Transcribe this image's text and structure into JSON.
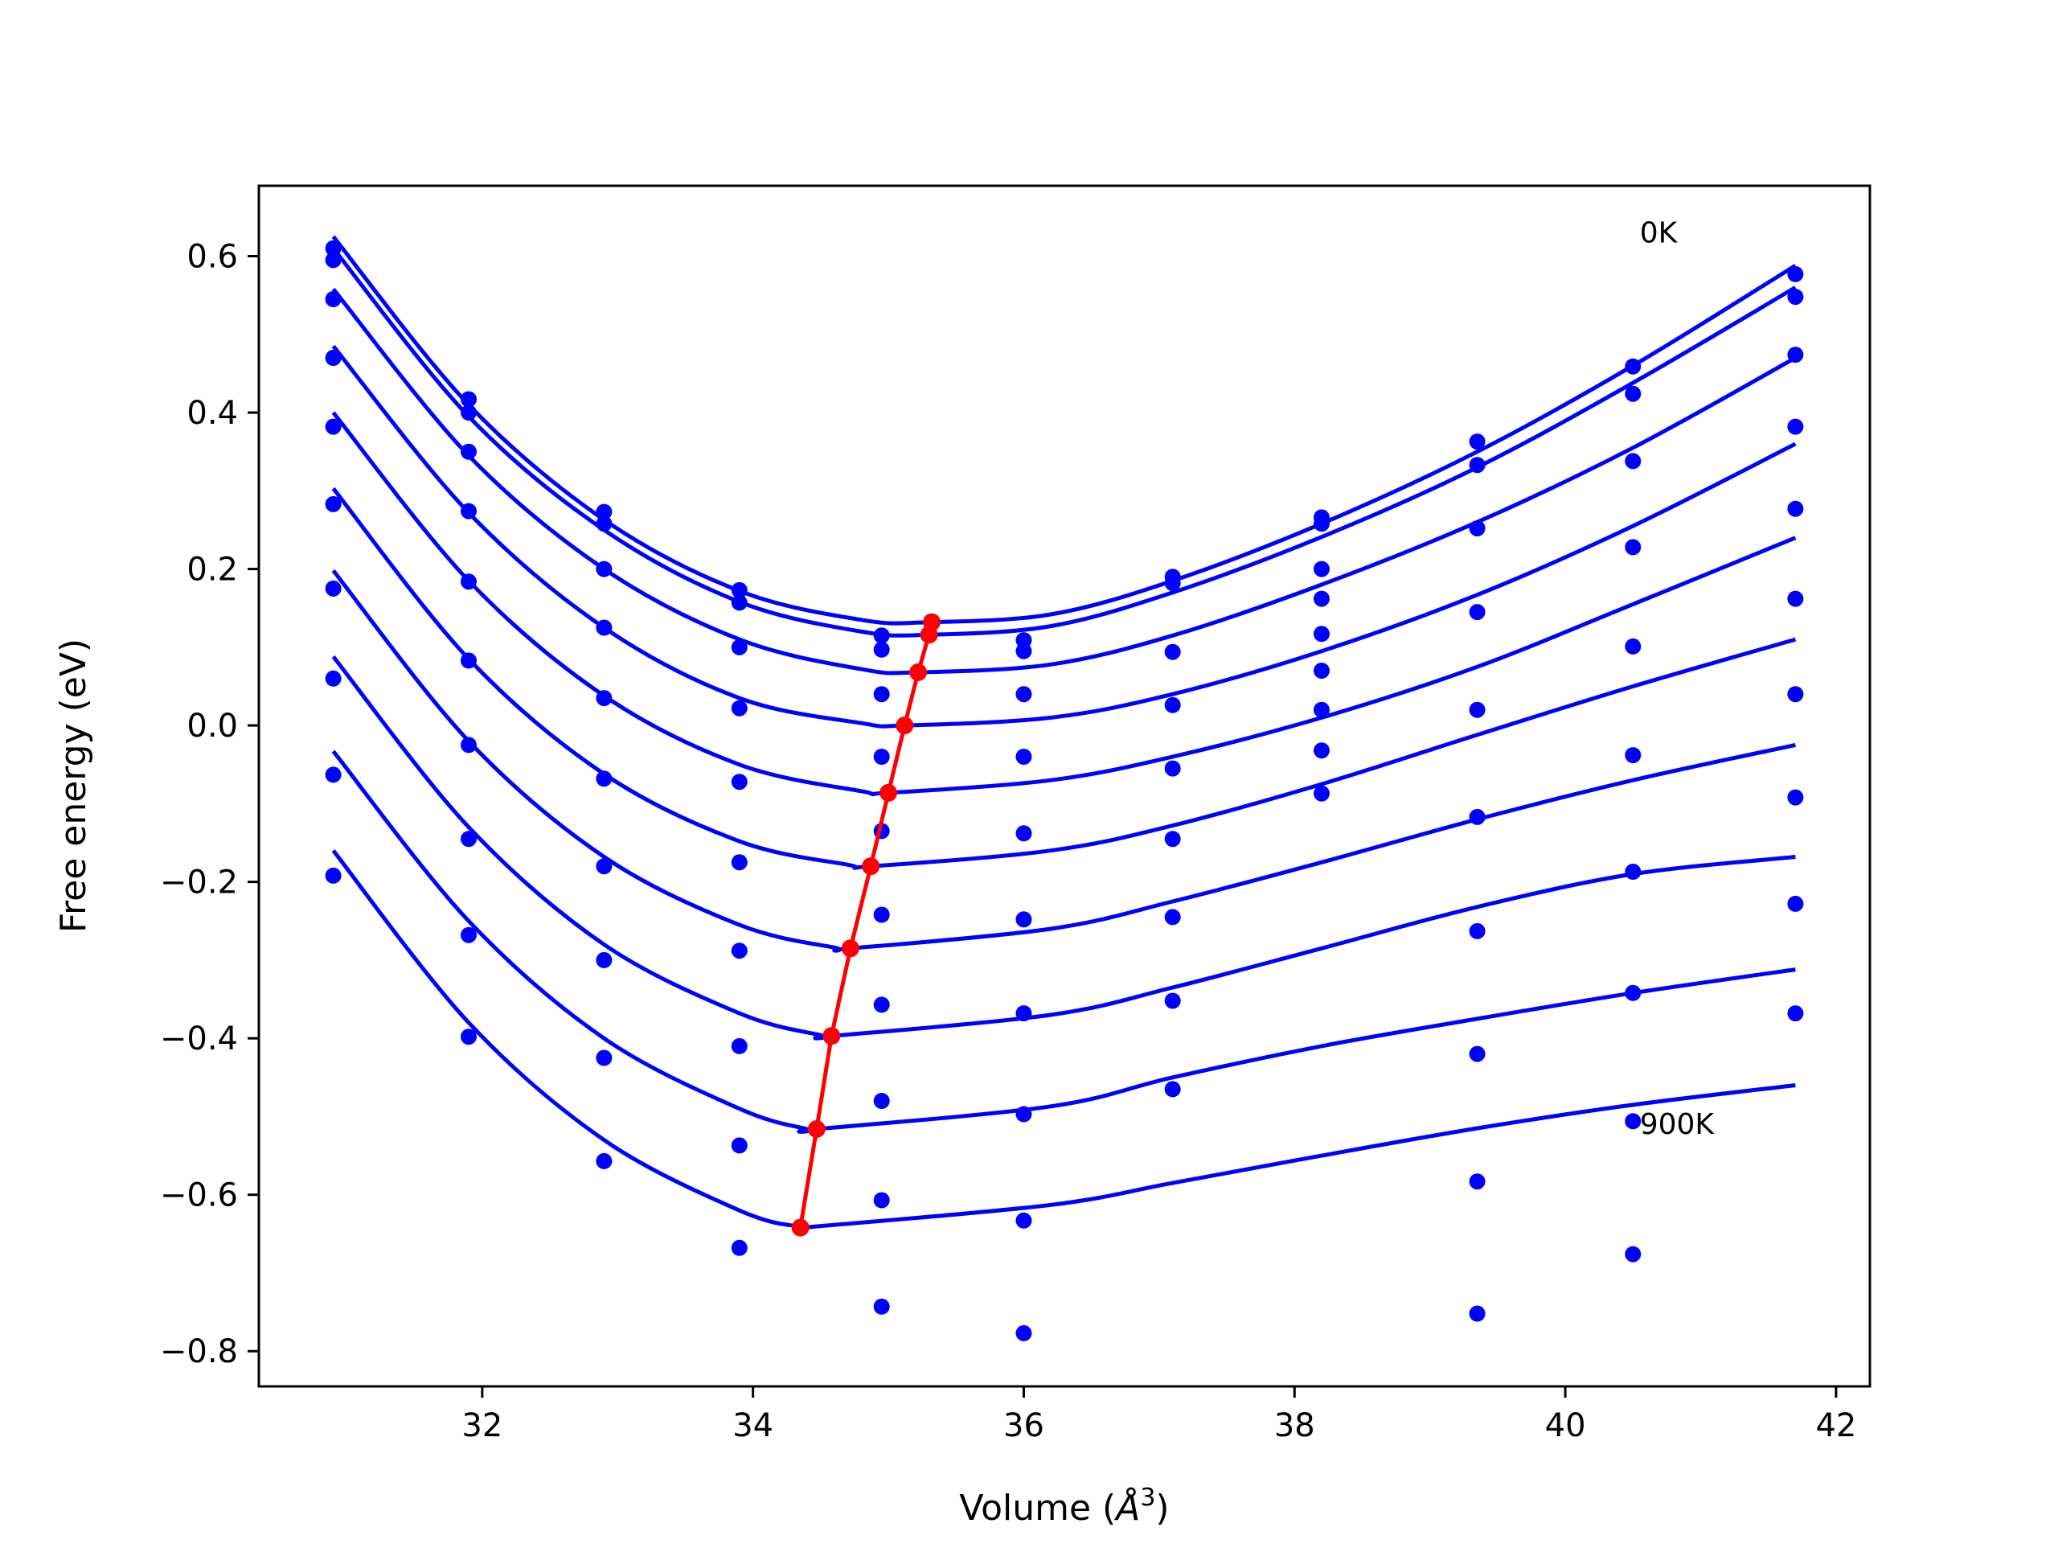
{
  "chart_data": {
    "type": "line",
    "xlabel_main": "Volume (",
    "xlabel_sym": "Å",
    "xlabel_exp": "3",
    "xlabel_close": ")",
    "ylabel": "Free energy (eV)",
    "xlim": [
      30.35,
      42.25
    ],
    "ylim": [
      -0.845,
      0.69
    ],
    "x_ticks": [
      32,
      34,
      36,
      38,
      40,
      42
    ],
    "x_tick_labels": [
      "32",
      "34",
      "36",
      "38",
      "40",
      "42"
    ],
    "y_ticks": [
      0.6,
      0.4,
      0.2,
      0.0,
      -0.2,
      -0.4,
      -0.6,
      -0.8
    ],
    "y_tick_labels": [
      "0.6",
      "0.4",
      "0.2",
      "0.0",
      "−0.2",
      "−0.4",
      "−0.6",
      "−0.8"
    ],
    "annotations": [
      {
        "text": "0K",
        "x": 40.55,
        "y": 0.63
      },
      {
        "text": "900K",
        "x": 40.55,
        "y": -0.51
      }
    ],
    "volumes": [
      30.9,
      31.9,
      32.9,
      33.9,
      34.95,
      36.0,
      37.1,
      38.2,
      39.35,
      40.5,
      41.7
    ],
    "point_color": "#0000ff",
    "curve_color": "#0000ff",
    "min_line_color": "#ff0000",
    "series": [
      {
        "points": [
          0.61,
          0.417,
          0.273,
          0.173,
          0.115,
          0.109,
          0.19,
          0.266,
          0.363,
          0.459,
          0.577
        ],
        "fit": [
          [
            30.9,
            0.625
          ],
          [
            31.9,
            0.41
          ],
          [
            32.9,
            0.263
          ],
          [
            33.9,
            0.172
          ],
          [
            34.8,
            0.135
          ],
          [
            35.3,
            0.132
          ],
          [
            36.2,
            0.142
          ],
          [
            37.1,
            0.185
          ],
          [
            38.2,
            0.258
          ],
          [
            39.35,
            0.35
          ],
          [
            40.5,
            0.46
          ],
          [
            41.7,
            0.588
          ]
        ]
      },
      {
        "points": [
          0.595,
          0.4,
          0.258,
          0.157,
          0.097,
          0.095,
          0.182,
          0.258,
          0.333,
          0.424,
          0.548
        ],
        "fit": [
          [
            30.9,
            0.61
          ],
          [
            31.9,
            0.395
          ],
          [
            32.9,
            0.25
          ],
          [
            33.9,
            0.158
          ],
          [
            34.8,
            0.12
          ],
          [
            35.3,
            0.116
          ],
          [
            36.2,
            0.127
          ],
          [
            37.1,
            0.17
          ],
          [
            38.2,
            0.241
          ],
          [
            39.35,
            0.33
          ],
          [
            40.5,
            0.438
          ],
          [
            41.7,
            0.56
          ]
        ]
      },
      {
        "points": [
          0.545,
          0.35,
          0.2,
          0.1,
          0.04,
          0.04,
          0.094,
          0.2,
          0.252,
          0.338,
          0.474
        ],
        "fit": [
          [
            30.9,
            0.558
          ],
          [
            31.9,
            0.345
          ],
          [
            32.9,
            0.2
          ],
          [
            33.9,
            0.11
          ],
          [
            34.8,
            0.072
          ],
          [
            35.22,
            0.068
          ],
          [
            36.2,
            0.078
          ],
          [
            37.1,
            0.115
          ],
          [
            38.2,
            0.18
          ],
          [
            39.35,
            0.26
          ],
          [
            40.5,
            0.355
          ],
          [
            41.7,
            0.47
          ]
        ]
      },
      {
        "points": [
          0.47,
          0.274,
          0.125,
          0.022,
          -0.04,
          -0.04,
          0.026,
          0.162,
          0.145,
          0.228,
          0.382
        ],
        "fit": [
          [
            30.9,
            0.485
          ],
          [
            31.9,
            0.272
          ],
          [
            32.9,
            0.125
          ],
          [
            33.9,
            0.035
          ],
          [
            34.8,
            0.003
          ],
          [
            35.12,
            0.0
          ],
          [
            36.2,
            0.01
          ],
          [
            37.1,
            0.04
          ],
          [
            38.2,
            0.095
          ],
          [
            39.35,
            0.167
          ],
          [
            40.5,
            0.255
          ],
          [
            41.7,
            0.36
          ]
        ]
      },
      {
        "points": [
          0.382,
          0.184,
          0.035,
          -0.072,
          -0.135,
          -0.138,
          -0.055,
          0.117,
          0.02,
          0.101,
          0.277
        ],
        "fit": [
          [
            30.9,
            0.4
          ],
          [
            31.9,
            0.185
          ],
          [
            32.9,
            0.038
          ],
          [
            33.9,
            -0.05
          ],
          [
            34.8,
            -0.084
          ],
          [
            35.0,
            -0.086
          ],
          [
            36.2,
            -0.07
          ],
          [
            37.1,
            -0.04
          ],
          [
            38.2,
            0.01
          ],
          [
            39.35,
            0.075
          ],
          [
            40.5,
            0.155
          ],
          [
            41.7,
            0.24
          ]
        ]
      },
      {
        "points": [
          0.283,
          0.083,
          -0.068,
          -0.175,
          -0.242,
          -0.248,
          -0.145,
          0.07,
          -0.117,
          -0.038,
          0.162
        ],
        "fit": [
          [
            30.9,
            0.303
          ],
          [
            31.9,
            0.085
          ],
          [
            32.9,
            -0.062
          ],
          [
            33.9,
            -0.148
          ],
          [
            34.7,
            -0.178
          ],
          [
            34.87,
            -0.18
          ],
          [
            36.2,
            -0.16
          ],
          [
            37.1,
            -0.128
          ],
          [
            38.2,
            -0.075
          ],
          [
            39.35,
            -0.012
          ],
          [
            40.5,
            0.05
          ],
          [
            41.7,
            0.11
          ]
        ]
      },
      {
        "points": [
          0.175,
          -0.025,
          -0.18,
          -0.288,
          -0.357,
          -0.368,
          -0.245,
          0.02,
          -0.263,
          -0.187,
          0.04
        ],
        "fit": [
          [
            30.9,
            0.198
          ],
          [
            31.9,
            -0.02
          ],
          [
            32.9,
            -0.168
          ],
          [
            33.9,
            -0.255
          ],
          [
            34.6,
            -0.284
          ],
          [
            34.72,
            -0.285
          ],
          [
            36.2,
            -0.26
          ],
          [
            37.1,
            -0.225
          ],
          [
            38.2,
            -0.175
          ],
          [
            39.35,
            -0.12
          ],
          [
            40.5,
            -0.07
          ],
          [
            41.7,
            -0.025
          ]
        ]
      },
      {
        "points": [
          0.06,
          -0.145,
          -0.3,
          -0.41,
          -0.48,
          -0.497,
          -0.352,
          -0.032,
          -0.42,
          -0.342,
          -0.092
        ],
        "fit": [
          [
            30.9,
            0.088
          ],
          [
            31.9,
            -0.13
          ],
          [
            32.9,
            -0.28
          ],
          [
            33.9,
            -0.368
          ],
          [
            34.5,
            -0.396
          ],
          [
            34.58,
            -0.397
          ],
          [
            36.2,
            -0.37
          ],
          [
            37.1,
            -0.335
          ],
          [
            38.2,
            -0.285
          ],
          [
            39.35,
            -0.232
          ],
          [
            40.5,
            -0.19
          ],
          [
            41.7,
            -0.168
          ]
        ]
      },
      {
        "points": [
          -0.063,
          -0.268,
          -0.425,
          -0.537,
          -0.607,
          -0.633,
          -0.465,
          -0.087,
          -0.583,
          -0.506,
          -0.228
        ],
        "fit": [
          [
            30.9,
            -0.033
          ],
          [
            31.9,
            -0.25
          ],
          [
            32.9,
            -0.4
          ],
          [
            33.9,
            -0.49
          ],
          [
            34.4,
            -0.516
          ],
          [
            34.47,
            -0.516
          ],
          [
            36.2,
            -0.487
          ],
          [
            37.1,
            -0.45
          ],
          [
            38.2,
            -0.41
          ],
          [
            39.35,
            -0.375
          ],
          [
            40.5,
            -0.342
          ],
          [
            41.7,
            -0.312
          ]
        ]
      },
      {
        "points": [
          -0.192,
          -0.398,
          -0.557,
          -0.668,
          -0.743,
          -0.777,
          null,
          null,
          -0.752,
          -0.676,
          -0.368
        ],
        "fit": [
          [
            30.9,
            -0.16
          ],
          [
            31.9,
            -0.38
          ],
          [
            32.9,
            -0.53
          ],
          [
            33.9,
            -0.62
          ],
          [
            34.35,
            -0.641
          ],
          [
            34.5,
            -0.64
          ],
          [
            36.2,
            -0.613
          ],
          [
            37.1,
            -0.585
          ],
          [
            38.2,
            -0.55
          ],
          [
            39.35,
            -0.515
          ],
          [
            40.5,
            -0.485
          ],
          [
            41.7,
            -0.46
          ]
        ]
      }
    ],
    "min_line": {
      "x": [
        35.32,
        35.3,
        35.22,
        35.12,
        35.0,
        34.87,
        34.72,
        34.58,
        34.47,
        34.35
      ],
      "y": [
        0.132,
        0.116,
        0.068,
        0.0,
        -0.086,
        -0.18,
        -0.285,
        -0.397,
        -0.516,
        -0.642
      ]
    }
  }
}
